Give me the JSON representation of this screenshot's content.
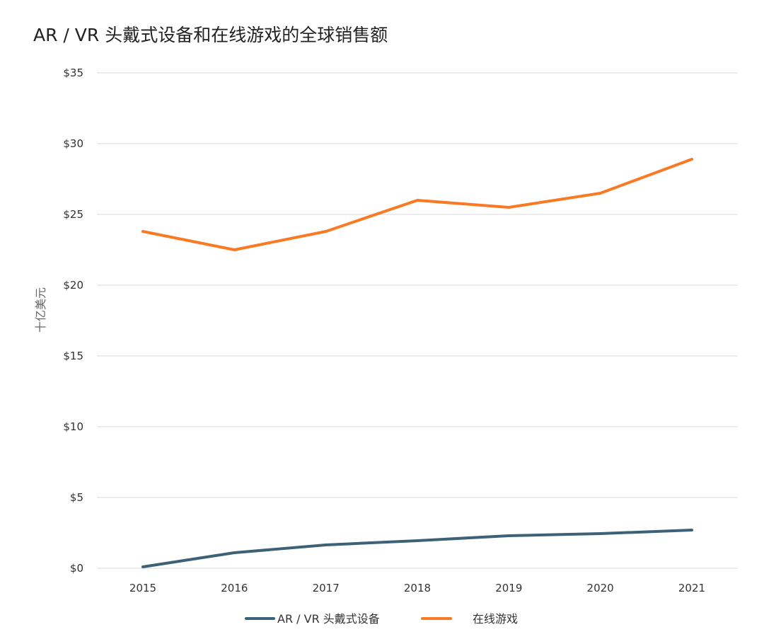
{
  "chart_data": {
    "type": "line",
    "title": "AR / VR 头戴式设备和在线游戏的全球销售额",
    "xlabel": "",
    "ylabel": "十亿美元",
    "categories": [
      "2015",
      "2016",
      "2017",
      "2018",
      "2019",
      "2020",
      "2021"
    ],
    "ylim": [
      0,
      35
    ],
    "yticks": [
      0,
      5,
      10,
      15,
      20,
      25,
      30,
      35
    ],
    "ytick_labels": [
      "$0",
      "$5",
      "$10",
      "$15",
      "$20",
      "$25",
      "$30",
      "$35"
    ],
    "grid": true,
    "legend_position": "bottom",
    "series": [
      {
        "name": "AR / VR 头戴式设备",
        "color": "#3d6277",
        "values": [
          0.1,
          1.1,
          1.65,
          1.95,
          2.3,
          2.45,
          2.7
        ]
      },
      {
        "name": "在线游戏",
        "color": "#f97a22",
        "values": [
          23.8,
          22.5,
          23.8,
          26.0,
          25.5,
          26.5,
          28.9
        ]
      }
    ]
  }
}
